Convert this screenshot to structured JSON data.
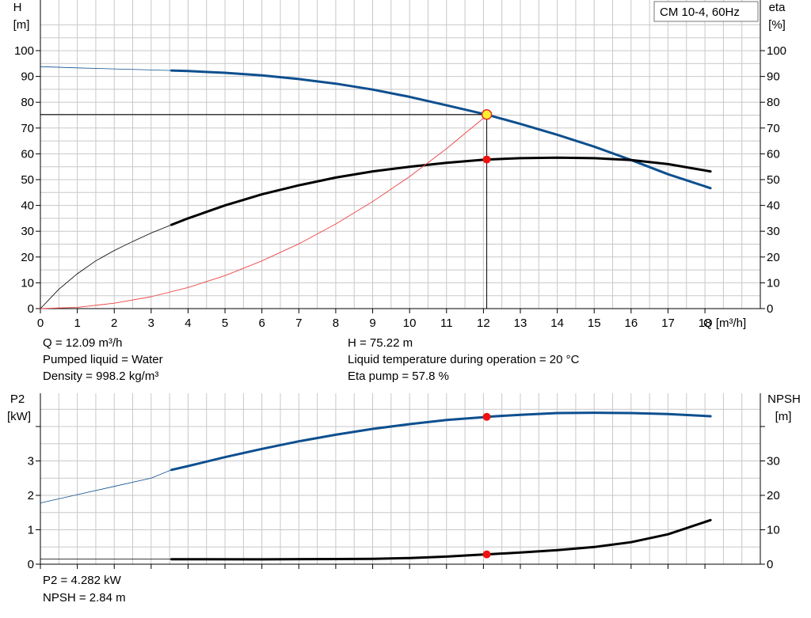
{
  "chart_data": [
    {
      "type": "line",
      "title": "CM 10-4, 60Hz",
      "left_axis": {
        "label_line1": "H",
        "label_line2": "[m]",
        "ylim": [
          0,
          100
        ],
        "ticks": [
          0,
          10,
          20,
          30,
          40,
          50,
          60,
          70,
          80,
          90,
          100
        ]
      },
      "right_axis": {
        "label_line1": "eta",
        "label_line2": "[%]",
        "ylim": [
          0,
          100
        ],
        "ticks": [
          0,
          10,
          20,
          30,
          40,
          50,
          60,
          70,
          80,
          90,
          100
        ]
      },
      "x_axis": {
        "label": "Q [m³/h]",
        "xlim": [
          0,
          19.5
        ],
        "ticks": [
          0,
          1,
          2,
          3,
          4,
          5,
          6,
          7,
          8,
          9,
          10,
          11,
          12,
          13,
          14,
          15,
          16,
          17,
          18
        ]
      },
      "grid": true,
      "series": [
        {
          "role": "H",
          "color": "#0d4f8f",
          "axis": "left",
          "extrapolated": {
            "x": [
              0,
              1,
              2,
              3,
              3.55
            ],
            "y": [
              93.8,
              93.3,
              92.9,
              92.5,
              92.3
            ]
          },
          "values": {
            "x": [
              3.55,
              4,
              5,
              6,
              7,
              8,
              9,
              10,
              11,
              12,
              12.09,
              13,
              14,
              15,
              16,
              17,
              18.15
            ],
            "y": [
              92.3,
              92.1,
              91.4,
              90.4,
              89.0,
              87.2,
              84.9,
              82.1,
              78.8,
              75.5,
              75.22,
              71.6,
              67.4,
              62.8,
              57.6,
              52.1,
              46.7
            ]
          }
        },
        {
          "role": "eta",
          "color": "#000000",
          "axis": "right",
          "extrapolated": {
            "x": [
              0,
              0.5,
              1,
              1.5,
              2,
              2.5,
              3,
              3.55
            ],
            "y": [
              0,
              7.5,
              13.5,
              18.5,
              22.5,
              26,
              29.3,
              32.5
            ]
          },
          "values": {
            "x": [
              3.55,
              4,
              5,
              6,
              7,
              8,
              9,
              10,
              11,
              12,
              12.09,
              13,
              14,
              15,
              16,
              17,
              18.15
            ],
            "y": [
              32.5,
              35.0,
              40.0,
              44.3,
              47.8,
              50.8,
              53.2,
              55.0,
              56.5,
              57.7,
              57.8,
              58.3,
              58.5,
              58.3,
              57.6,
              56.0,
              53.2
            ]
          }
        },
        {
          "role": "system-curve",
          "color": "#ee4444",
          "axis": "left",
          "values": {
            "x": [
              0,
              1,
              2,
              3,
              4,
              5,
              6,
              7,
              8,
              9,
              10,
              11,
              12,
              12.09
            ],
            "y": [
              0,
              0.5,
              2.1,
              4.6,
              8.2,
              12.8,
              18.5,
              25.1,
              32.8,
              41.5,
              51.2,
              62.0,
              73.8,
              75.22
            ]
          }
        }
      ],
      "operating_point": {
        "Q": 12.09,
        "H": 75.22,
        "eta": 57.8
      }
    },
    {
      "type": "line",
      "left_axis": {
        "label_line1": "P2",
        "label_line2": "[kW]",
        "ylim": [
          0,
          4
        ],
        "ticks": [
          0,
          1,
          2,
          3
        ]
      },
      "right_axis": {
        "label_line1": "NPSH",
        "label_line2": "[m]",
        "ylim": [
          0,
          40
        ],
        "ticks": [
          0,
          10,
          20,
          30
        ]
      },
      "x_axis": {
        "xlim": [
          0,
          19.5
        ],
        "ticks": [
          0,
          1,
          2,
          3,
          4,
          5,
          6,
          7,
          8,
          9,
          10,
          11,
          12,
          13,
          14,
          15,
          16,
          17,
          18
        ]
      },
      "grid": true,
      "series": [
        {
          "role": "P2",
          "color": "#0d4f8f",
          "axis": "left",
          "extrapolated": {
            "x": [
              0,
              1,
              2,
              3,
              3.55
            ],
            "y": [
              1.78,
              2.02,
              2.26,
              2.5,
              2.74
            ]
          },
          "values": {
            "x": [
              3.55,
              4,
              5,
              6,
              7,
              8,
              9,
              10,
              11,
              12,
              12.09,
              13,
              14,
              15,
              16,
              17,
              18.15
            ],
            "y": [
              2.74,
              2.85,
              3.11,
              3.35,
              3.57,
              3.76,
              3.93,
              4.07,
              4.19,
              4.27,
              4.282,
              4.34,
              4.39,
              4.4,
              4.39,
              4.36,
              4.3
            ]
          }
        },
        {
          "role": "NPSH",
          "color": "#000000",
          "axis": "right",
          "extrapolated": {
            "x": [
              0,
              3.55
            ],
            "y": [
              1.5,
              1.5
            ]
          },
          "values": {
            "x": [
              3.55,
              6,
              8,
              9,
              10,
              11,
              12,
              12.09,
              13,
              14,
              15,
              16,
              17,
              18.15
            ],
            "y": [
              1.45,
              1.4,
              1.5,
              1.55,
              1.8,
              2.2,
              2.8,
              2.84,
              3.4,
              4.1,
              5.0,
              6.4,
              8.7,
              12.8
            ]
          }
        }
      ],
      "operating_point": {
        "Q": 12.09,
        "P2": 4.282,
        "NPSH": 2.84
      }
    }
  ],
  "info_top": {
    "q": "Q = 12.09 m³/h",
    "liquid": "Pumped liquid = Water",
    "density": "Density = 998.2 kg/m³",
    "h": "H = 75.22 m",
    "temp": "Liquid temperature during operation = 20 °C",
    "eta": "Eta pump = 57.8 %"
  },
  "info_bottom": {
    "p2": "P2 = 4.282 kW",
    "npsh": "NPSH = 2.84 m"
  },
  "colors": {
    "grid": "#c8c8c8",
    "h_curve": "#0d4f8f",
    "system_curve": "#ee4444",
    "marker_red": "#ee1111",
    "marker_yellow": "#ffee33"
  }
}
